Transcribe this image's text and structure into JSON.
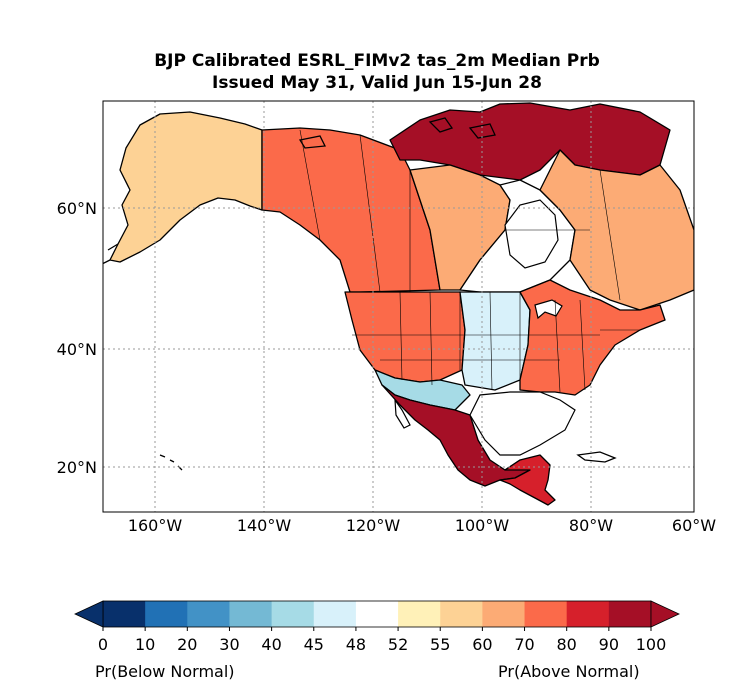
{
  "title": {
    "line1": "BJP Calibrated ESRL_FIMv2 tas_2m Median Prb",
    "line2": "Issued May 31, Valid Jun 15-Jun 28"
  },
  "map": {
    "lon_ticks": [
      "160°W",
      "140°W",
      "120°W",
      "100°W",
      "80°W",
      "60°W"
    ],
    "lat_ticks": [
      "60°N",
      "40°N",
      "20°N"
    ],
    "gridlines": true
  },
  "colorbar": {
    "tick_labels": [
      "0",
      "10",
      "20",
      "30",
      "40",
      "45",
      "48",
      "52",
      "55",
      "60",
      "70",
      "80",
      "90",
      "100"
    ],
    "colors": [
      "#08306b",
      "#2171b5",
      "#4292c6",
      "#74b9d4",
      "#a6dbe6",
      "#d8f1fa",
      "#ffffff",
      "#fff1b8",
      "#fdd295",
      "#fcab75",
      "#fb6a4a",
      "#d6202b",
      "#a50f26"
    ],
    "extend_left_color": "#08306b",
    "extend_right_color": "#a50f26",
    "left_caption": "Pr(Below Normal)",
    "right_caption": "Pr(Above Normal)"
  },
  "regions": [
    {
      "name": "alaska",
      "level": 55
    },
    {
      "name": "west-canada",
      "level": 70
    },
    {
      "name": "north-canada",
      "level": 90
    },
    {
      "name": "hudson-bay-area",
      "level": 48
    },
    {
      "name": "central-canada",
      "level": 60
    },
    {
      "name": "western-us",
      "level": 70
    },
    {
      "name": "central-us",
      "level": 45
    },
    {
      "name": "eastern-us",
      "level": 70
    },
    {
      "name": "texas-coast",
      "level": 40
    },
    {
      "name": "mexico",
      "level": 90
    },
    {
      "name": "central-america",
      "level": 80
    },
    {
      "name": "labrador",
      "level": 60
    }
  ]
}
